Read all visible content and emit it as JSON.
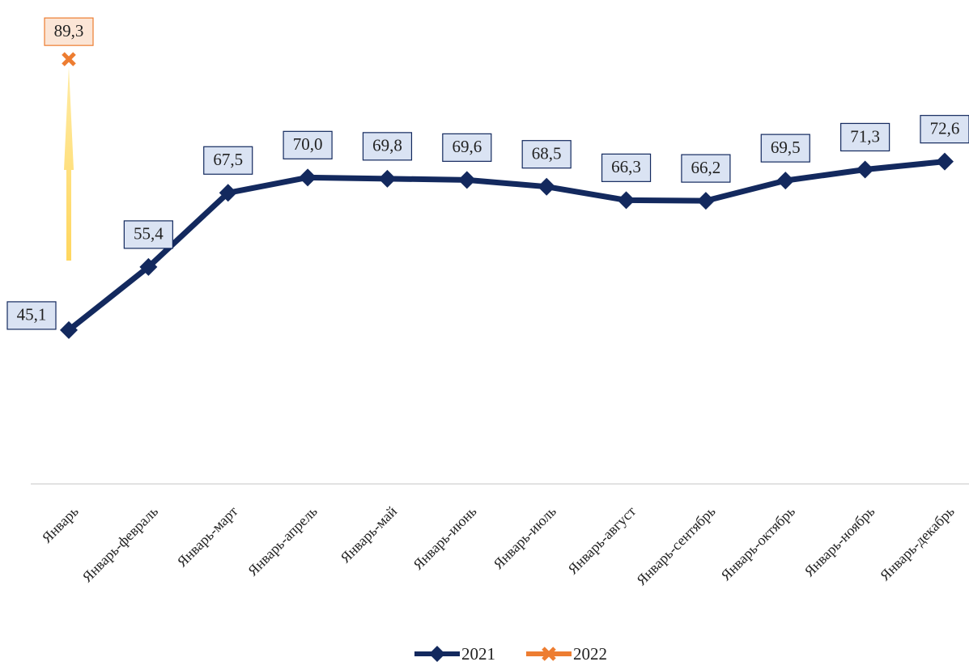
{
  "chart_data": {
    "type": "line",
    "categories": [
      "Январь",
      "Январь-февраль",
      "Январь-март",
      "Январь-апрель",
      "Январь-май",
      "Январь-июнь",
      "Январь-июль",
      "Январь-август",
      "Январь-сентябрь",
      "Январь-октябрь",
      "Январь-ноябрь",
      "Январь-декабрь"
    ],
    "series": [
      {
        "name": "2021",
        "color": "#13295e",
        "marker": "diamond",
        "values": [
          45.1,
          55.4,
          67.5,
          70.0,
          69.8,
          69.6,
          68.5,
          66.3,
          66.2,
          69.5,
          71.3,
          72.6
        ],
        "value_labels": [
          "45,1",
          "55,4",
          "67,5",
          "70,0",
          "69,8",
          "69,6",
          "68,5",
          "66,3",
          "66,2",
          "69,5",
          "71,3",
          "72,6"
        ]
      },
      {
        "name": "2022",
        "color": "#ed7d31",
        "marker": "x",
        "values": [
          89.3,
          null,
          null,
          null,
          null,
          null,
          null,
          null,
          null,
          null,
          null,
          null
        ],
        "value_labels": [
          "89,3",
          null,
          null,
          null,
          null,
          null,
          null,
          null,
          null,
          null,
          null,
          null
        ]
      }
    ],
    "ylim": [
      20,
      95
    ],
    "legend": "bottom"
  }
}
